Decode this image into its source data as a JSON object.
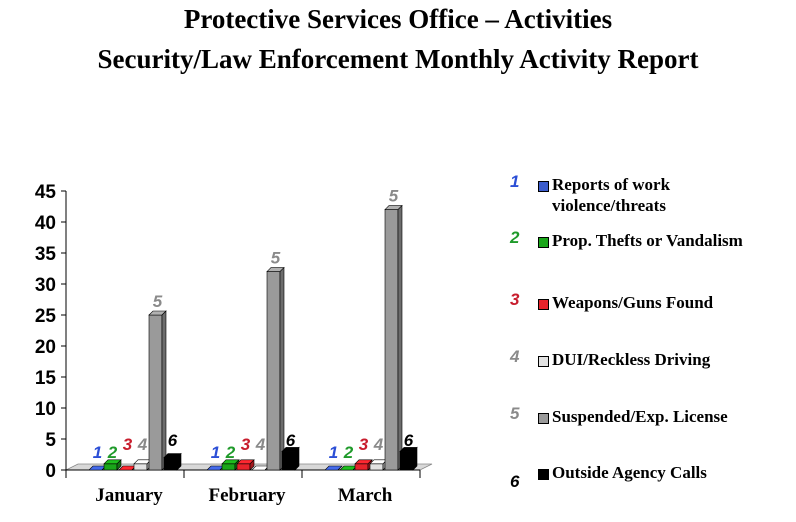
{
  "title_line1": "Protective Services Office – Activities",
  "title_line2": "Security/Law Enforcement Monthly Activity Report",
  "chart_data": {
    "type": "bar",
    "categories": [
      "January",
      "February",
      "March"
    ],
    "ylim": [
      0,
      45
    ],
    "yticks": [
      "0",
      "5",
      "10",
      "15",
      "20",
      "25",
      "30",
      "35",
      "40",
      "45"
    ],
    "legend_position": "right",
    "grid": false,
    "series": [
      {
        "number": "1",
        "name": "Reports of work violence/threats",
        "legend_lines": [
          "Reports of work",
          "violence/threats"
        ],
        "color": "#3b5ccc",
        "label_color": "#2c4fd6",
        "values": [
          0,
          0,
          0
        ]
      },
      {
        "number": "2",
        "name": "Prop. Thefts or Vandalism",
        "legend_lines": [
          "Prop. Thefts or Vandalism"
        ],
        "color": "#1aa61a",
        "label_color": "#1f9a2a",
        "values": [
          1,
          1,
          0
        ]
      },
      {
        "number": "3",
        "name": "Weapons/Guns Found",
        "legend_lines": [
          "Weapons/Guns Found"
        ],
        "color": "#e8232b",
        "label_color": "#c81e2e",
        "values": [
          0,
          1,
          1
        ]
      },
      {
        "number": "4",
        "name": "DUI/Reckless Driving",
        "legend_lines": [
          "DUI/Reckless Driving"
        ],
        "color": "#e2e2e2",
        "label_color": "#8a8a8a",
        "values": [
          1,
          0,
          1
        ]
      },
      {
        "number": "5",
        "name": "Suspended/Exp. License",
        "legend_lines": [
          "Suspended/Exp. License"
        ],
        "color": "#9a9a9a",
        "label_color": "#8a8a8a",
        "values": [
          25,
          32,
          42
        ]
      },
      {
        "number": "6",
        "name": "Outside Agency Calls",
        "legend_lines": [
          "Outside Agency Calls"
        ],
        "color": "#000000",
        "label_color": "#000000",
        "values": [
          2,
          3,
          3
        ]
      }
    ]
  }
}
